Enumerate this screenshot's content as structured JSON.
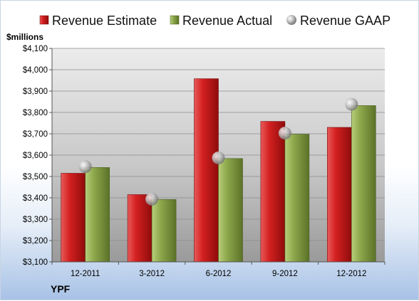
{
  "chart_data": {
    "type": "bar",
    "unit_label": "$millions",
    "ticker": "YPF",
    "categories": [
      "12-2011",
      "3-2012",
      "6-2012",
      "9-2012",
      "12-2012"
    ],
    "series": [
      {
        "name": "Revenue Estimate",
        "kind": "bar",
        "color": "#cc1f1f",
        "values": [
          3515,
          3415,
          3958,
          3758,
          3730
        ]
      },
      {
        "name": "Revenue Actual",
        "kind": "bar",
        "color": "#8aa64a",
        "values": [
          3542,
          3392,
          3584,
          3698,
          3832
        ]
      },
      {
        "name": "Revenue GAAP",
        "kind": "marker",
        "color": "#b8b8b8",
        "values": [
          3546,
          3394,
          3587,
          3703,
          3838
        ]
      }
    ],
    "ylim": [
      3100,
      4100
    ],
    "yticks": [
      3100,
      3200,
      3300,
      3400,
      3500,
      3600,
      3700,
      3800,
      3900,
      4000,
      4100
    ],
    "ytick_labels": [
      "$3,100",
      "$3,200",
      "$3,300",
      "$3,400",
      "$3,500",
      "$3,600",
      "$3,700",
      "$3,800",
      "$3,900",
      "$4,000",
      "$4,100"
    ],
    "grid": true,
    "legend_position": "top"
  }
}
